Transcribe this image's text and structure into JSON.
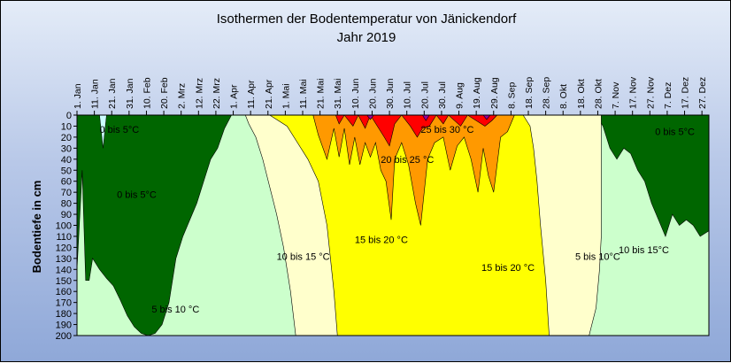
{
  "colors": {
    "below0": "#ccffff",
    "c0_5": "#006600",
    "c5_10": "#ccffcc",
    "c10_15": "#ffffcc",
    "c15_20": "#ffff00",
    "c20_25": "#ff9900",
    "c25_30": "#ff0000",
    "c30plus": "#990099",
    "background_gradient": [
      "#e4ecf8",
      "#8fa8d8"
    ]
  },
  "chart_data": {
    "type": "heatmap",
    "title": "Isothermen der Bodentemperatur von Jänickendorf",
    "subtitle": "Jahr 2019",
    "ylabel": "Bodentiefe in cm",
    "xlabel": "",
    "y_axis": {
      "range": [
        0,
        200
      ],
      "inverted": true,
      "ticks": [
        0,
        10,
        20,
        30,
        40,
        50,
        60,
        70,
        80,
        90,
        100,
        110,
        120,
        130,
        140,
        150,
        160,
        170,
        180,
        190,
        200
      ]
    },
    "x_axis": {
      "unit": "day of year 2019",
      "range": [
        1,
        365
      ],
      "tick_labels": [
        "1. Jan",
        "11. Jan",
        "21. Jan",
        "31. Jan",
        "10. Feb",
        "20. Feb",
        "2. Mrz",
        "12. Mrz",
        "22. Mrz",
        "1. Apr",
        "11. Apr",
        "21. Apr",
        "1. Mai",
        "11. Mai",
        "21. Mai",
        "31. Mai",
        "10. Jun",
        "20. Jun",
        "30. Jun",
        "10. Jul",
        "20. Jul",
        "30. Jul",
        "9. Aug",
        "19. Aug",
        "29. Aug",
        "8. Sep",
        "18. Sep",
        "28. Sep",
        "8. Okt",
        "18. Okt",
        "28. Okt",
        "7. Nov",
        "17. Nov",
        "27. Nov",
        "7. Dez",
        "17. Dez",
        "27. Dez"
      ],
      "tick_days": [
        1,
        11,
        21,
        31,
        41,
        51,
        61,
        71,
        81,
        91,
        101,
        111,
        121,
        131,
        141,
        151,
        161,
        171,
        181,
        191,
        201,
        211,
        221,
        231,
        241,
        251,
        261,
        271,
        281,
        291,
        301,
        311,
        321,
        331,
        341,
        351,
        361
      ]
    },
    "annotations": [
      {
        "text": "0 bis 5°C",
        "day": 14,
        "depth": 13
      },
      {
        "text": "0 bis 5°C",
        "day": 24,
        "depth": 72
      },
      {
        "text": "5 bis 10 °C",
        "day": 44,
        "depth": 176
      },
      {
        "text": "10 bis 15 °C",
        "day": 116,
        "depth": 128
      },
      {
        "text": "15 bis 20 °C",
        "day": 161,
        "depth": 113
      },
      {
        "text": "20 bis 25 °C",
        "day": 176,
        "depth": 40
      },
      {
        "text": "25 bis 30 °C",
        "day": 199,
        "depth": 13
      },
      {
        "text": "15 bis 20 °C",
        "day": 234,
        "depth": 138
      },
      {
        "text": "5 bis 10°C",
        "day": 288,
        "depth": 128
      },
      {
        "text": "10 bis 15°C",
        "day": 313,
        "depth": 122
      },
      {
        "text": "0 bis 5°C",
        "day": 334,
        "depth": 15
      }
    ],
    "isotherm_bands": [
      {
        "name": "10-15",
        "points": [
          [
            98,
            0
          ],
          [
            100,
            8
          ],
          [
            104,
            20
          ],
          [
            108,
            40
          ],
          [
            112,
            65
          ],
          [
            116,
            90
          ],
          [
            120,
            120
          ],
          [
            124,
            160
          ],
          [
            127,
            200
          ],
          [
            296,
            200
          ],
          [
            300,
            175
          ],
          [
            302,
            140
          ],
          [
            303,
            110
          ],
          [
            303,
            0
          ]
        ]
      },
      {
        "name": "15-20",
        "points": [
          [
            112,
            0
          ],
          [
            122,
            10
          ],
          [
            128,
            25
          ],
          [
            134,
            40
          ],
          [
            140,
            60
          ],
          [
            145,
            100
          ],
          [
            149,
            160
          ],
          [
            151,
            200
          ],
          [
            273,
            200
          ],
          [
            271,
            150
          ],
          [
            268,
            100
          ],
          [
            266,
            60
          ],
          [
            264,
            30
          ],
          [
            262,
            10
          ],
          [
            258,
            0
          ]
        ]
      },
      {
        "name": "20-25",
        "points": [
          [
            137,
            0
          ],
          [
            140,
            18
          ],
          [
            145,
            40
          ],
          [
            149,
            12
          ],
          [
            152,
            38
          ],
          [
            155,
            12
          ],
          [
            158,
            45
          ],
          [
            161,
            20
          ],
          [
            164,
            45
          ],
          [
            167,
            25
          ],
          [
            170,
            38
          ],
          [
            173,
            25
          ],
          [
            176,
            50
          ],
          [
            179,
            60
          ],
          [
            182,
            95
          ],
          [
            184,
            40
          ],
          [
            188,
            25
          ],
          [
            192,
            45
          ],
          [
            196,
            80
          ],
          [
            199,
            100
          ],
          [
            203,
            40
          ],
          [
            207,
            25
          ],
          [
            212,
            20
          ],
          [
            216,
            50
          ],
          [
            220,
            28
          ],
          [
            224,
            20
          ],
          [
            228,
            40
          ],
          [
            232,
            70
          ],
          [
            235,
            30
          ],
          [
            238,
            55
          ],
          [
            241,
            70
          ],
          [
            245,
            20
          ],
          [
            249,
            15
          ],
          [
            253,
            0
          ]
        ]
      },
      {
        "name": "25-30",
        "points": [
          [
            150,
            0
          ],
          [
            152,
            8
          ],
          [
            155,
            0
          ],
          [
            160,
            10
          ],
          [
            163,
            0
          ],
          [
            167,
            12
          ],
          [
            170,
            0
          ],
          [
            178,
            20
          ],
          [
            181,
            28
          ],
          [
            184,
            8
          ],
          [
            188,
            0
          ],
          [
            193,
            10
          ],
          [
            197,
            20
          ],
          [
            200,
            12
          ],
          [
            204,
            10
          ],
          [
            208,
            0
          ],
          [
            212,
            8
          ],
          [
            215,
            0
          ],
          [
            222,
            10
          ],
          [
            226,
            0
          ],
          [
            236,
            10
          ],
          [
            240,
            5
          ],
          [
            243,
            0
          ]
        ]
      },
      {
        "name": "30+",
        "points": [
          [
            168,
            0
          ],
          [
            170,
            4
          ],
          [
            172,
            0
          ],
          [
            200,
            0
          ],
          [
            202,
            5
          ],
          [
            204,
            0
          ],
          [
            235,
            0
          ],
          [
            237,
            4
          ],
          [
            239,
            0
          ]
        ]
      }
    ],
    "cold_profile": [
      [
        1,
        140
      ],
      [
        4,
        50
      ],
      [
        6,
        150
      ],
      [
        8,
        150
      ],
      [
        10,
        130
      ],
      [
        14,
        140
      ],
      [
        18,
        148
      ],
      [
        22,
        155
      ],
      [
        26,
        168
      ],
      [
        30,
        182
      ],
      [
        34,
        192
      ],
      [
        38,
        198
      ],
      [
        42,
        200
      ],
      [
        46,
        198
      ],
      [
        50,
        190
      ],
      [
        54,
        170
      ],
      [
        58,
        130
      ],
      [
        62,
        110
      ],
      [
        66,
        95
      ],
      [
        70,
        80
      ],
      [
        74,
        60
      ],
      [
        78,
        40
      ],
      [
        82,
        30
      ],
      [
        86,
        12
      ],
      [
        90,
        0
      ],
      [
        300,
        0
      ],
      [
        304,
        10
      ],
      [
        308,
        30
      ],
      [
        312,
        40
      ],
      [
        316,
        30
      ],
      [
        320,
        35
      ],
      [
        324,
        50
      ],
      [
        328,
        60
      ],
      [
        332,
        80
      ],
      [
        336,
        95
      ],
      [
        340,
        110
      ],
      [
        344,
        90
      ],
      [
        348,
        100
      ],
      [
        352,
        95
      ],
      [
        356,
        100
      ],
      [
        360,
        110
      ],
      [
        365,
        105
      ]
    ],
    "below0_patches": [
      [
        [
          14,
          0
        ],
        [
          16,
          30
        ],
        [
          18,
          0
        ]
      ]
    ]
  }
}
